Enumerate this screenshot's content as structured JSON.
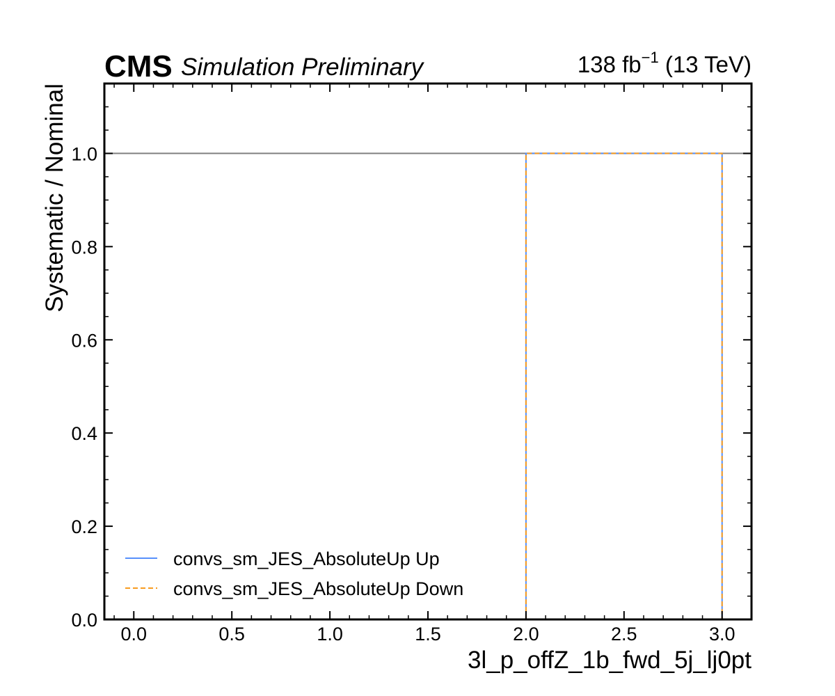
{
  "header": {
    "experiment": "CMS",
    "status": "Simulation Preliminary",
    "lumi_value": "138 fb",
    "lumi_exp": "−1",
    "energy": " (13 TeV)"
  },
  "chart_data": {
    "type": "line",
    "xlabel": "3l_p_offZ_1b_fwd_5j_lj0pt",
    "ylabel": "Systematic / Nominal",
    "xlim": [
      -0.15,
      3.15
    ],
    "ylim": [
      0.0,
      1.15
    ],
    "xticks": [
      "0.0",
      "0.5",
      "1.0",
      "1.5",
      "2.0",
      "2.5",
      "3.0"
    ],
    "yticks": [
      "0.0",
      "0.2",
      "0.4",
      "0.6",
      "0.8",
      "1.0"
    ],
    "reference_line": 1.0,
    "reference_color": "#808080",
    "series": [
      {
        "name": "convs_sm_JES_AbsoluteUp Up",
        "color": "#5790fc",
        "style": "solid",
        "bin_edges": [
          0,
          1,
          2,
          3
        ],
        "values": [
          0,
          0,
          1.0
        ]
      },
      {
        "name": "convs_sm_JES_AbsoluteUp Down",
        "color": "#f89c20",
        "style": "dashed",
        "bin_edges": [
          0,
          1,
          2,
          3
        ],
        "values": [
          0,
          0,
          1.0
        ]
      }
    ],
    "legend_position": "lower-left",
    "grid": false
  }
}
